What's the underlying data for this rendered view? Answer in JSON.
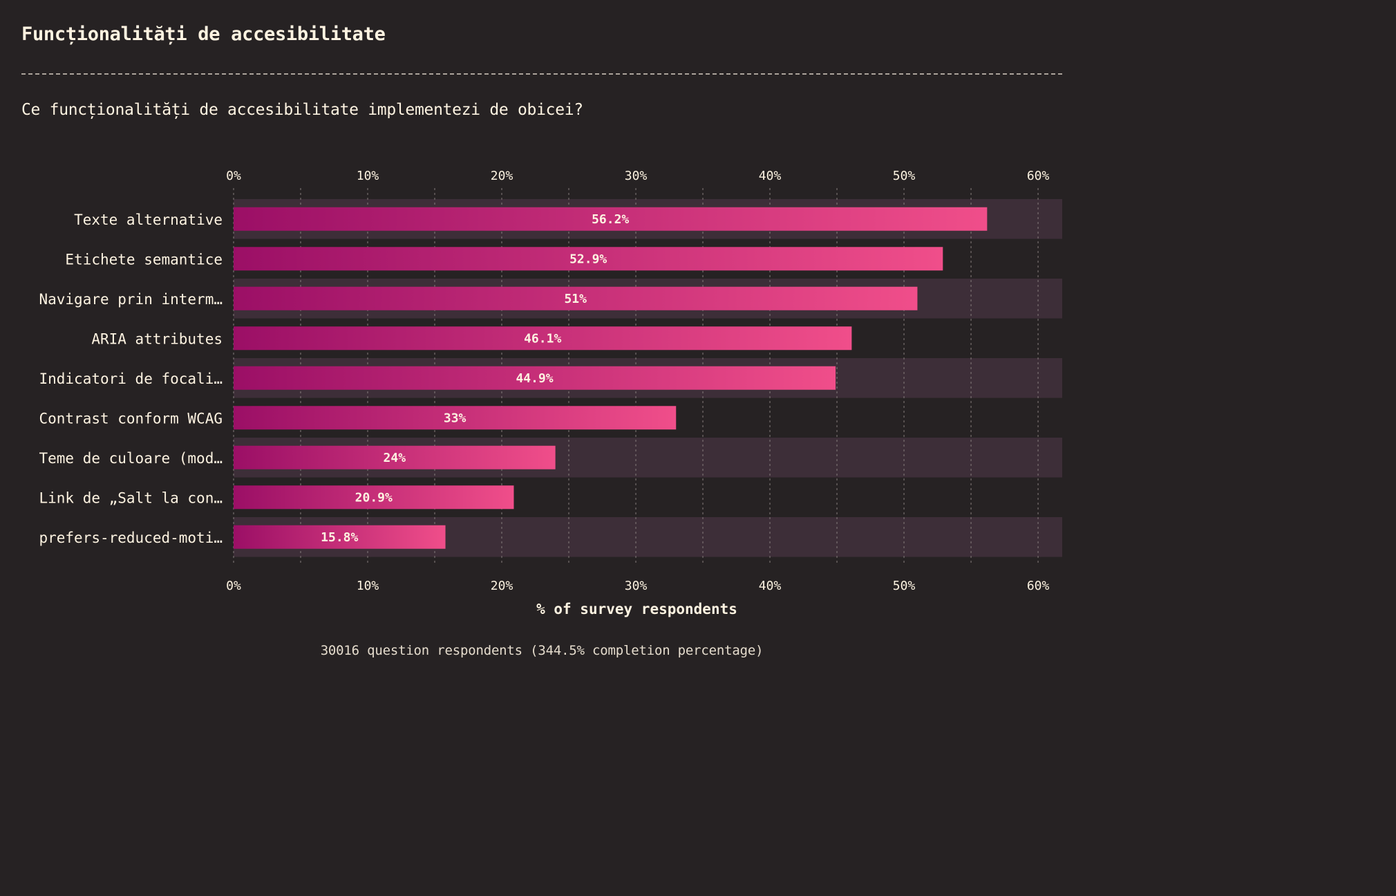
{
  "title": "Funcționalități de accesibilitate",
  "subtitle": "Ce funcționalități de accesibilitate implementezi de obicei?",
  "footer": "30016 question respondents (344.5% completion percentage)",
  "colors": {
    "background": "#262223",
    "band": "#3d2e38",
    "bar_start": "#9b0f66",
    "bar_end": "#f04e8a",
    "text": "#fdf3e1"
  },
  "chart_data": {
    "type": "bar",
    "orientation": "horizontal",
    "categories": [
      "Texte alternative",
      "Etichete semantice",
      "Navigare prin interm…",
      "ARIA attributes",
      "Indicatori de focali…",
      "Contrast conform WCAG",
      "Teme de culoare (mod…",
      "Link de „Salt la con…",
      "prefers-reduced-moti…"
    ],
    "values": [
      56.2,
      52.9,
      51,
      46.1,
      44.9,
      33,
      24,
      20.9,
      15.8
    ],
    "value_labels": [
      "56.2%",
      "52.9%",
      "51%",
      "46.1%",
      "44.9%",
      "33%",
      "24%",
      "20.9%",
      "15.8%"
    ],
    "xlim": [
      0,
      61.8
    ],
    "x_ticks": [
      0,
      10,
      20,
      30,
      40,
      50,
      60
    ],
    "x_tick_labels": [
      "0%",
      "10%",
      "20%",
      "30%",
      "40%",
      "50%",
      "60%"
    ],
    "xlabel": "% of survey respondents",
    "grid": true,
    "axis_position": "top and bottom"
  }
}
